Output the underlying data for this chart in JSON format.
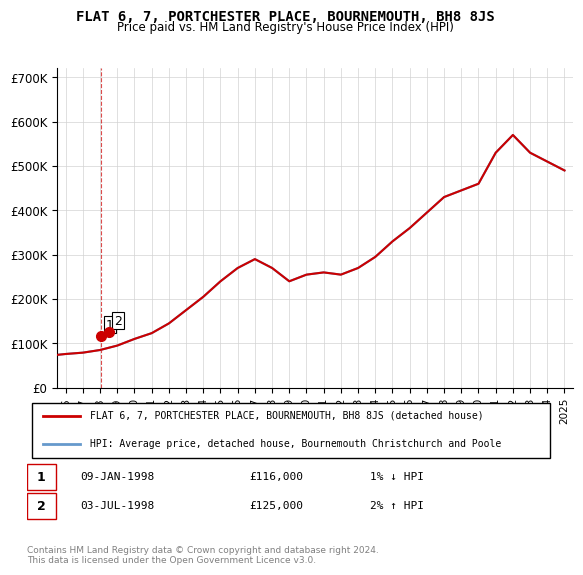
{
  "title": "FLAT 6, 7, PORTCHESTER PLACE, BOURNEMOUTH, BH8 8JS",
  "subtitle": "Price paid vs. HM Land Registry's House Price Index (HPI)",
  "ylabel": "",
  "yticks": [
    0,
    100000,
    200000,
    300000,
    400000,
    500000,
    600000,
    700000
  ],
  "ytick_labels": [
    "£0",
    "£100K",
    "£200K",
    "£300K",
    "£400K",
    "£500K",
    "£600K",
    "£700K"
  ],
  "xlim_start": 1995.5,
  "xlim_end": 2025.5,
  "ylim": [
    0,
    720000
  ],
  "hpi_color": "#6699cc",
  "price_color": "#cc0000",
  "dashed_color": "#cc0000",
  "legend_house_label": "FLAT 6, 7, PORTCHESTER PLACE, BOURNEMOUTH, BH8 8JS (detached house)",
  "legend_hpi_label": "HPI: Average price, detached house, Bournemouth Christchurch and Poole",
  "transaction1_label": "1",
  "transaction1_date": "09-JAN-1998",
  "transaction1_price": "£116,000",
  "transaction1_hpi": "1% ↓ HPI",
  "transaction2_label": "2",
  "transaction2_date": "03-JUL-1998",
  "transaction2_price": "£125,000",
  "transaction2_hpi": "2% ↑ HPI",
  "footnote": "Contains HM Land Registry data © Crown copyright and database right 2024.\nThis data is licensed under the Open Government Licence v3.0.",
  "hpi_years": [
    1995,
    1996,
    1997,
    1998,
    1999,
    2000,
    2001,
    2002,
    2003,
    2004,
    2005,
    2006,
    2007,
    2008,
    2009,
    2010,
    2011,
    2012,
    2013,
    2014,
    2015,
    2016,
    2017,
    2018,
    2019,
    2020,
    2021,
    2022,
    2023,
    2024,
    2025
  ],
  "hpi_values": [
    72000,
    76000,
    79000,
    85000,
    95000,
    110000,
    123000,
    145000,
    175000,
    205000,
    240000,
    270000,
    290000,
    270000,
    240000,
    255000,
    260000,
    255000,
    270000,
    295000,
    330000,
    360000,
    395000,
    430000,
    445000,
    460000,
    530000,
    570000,
    530000,
    510000,
    490000
  ],
  "transactions": [
    {
      "year": 1998.03,
      "price": 116000,
      "label": "1"
    },
    {
      "year": 1998.5,
      "price": 125000,
      "label": "2"
    }
  ]
}
